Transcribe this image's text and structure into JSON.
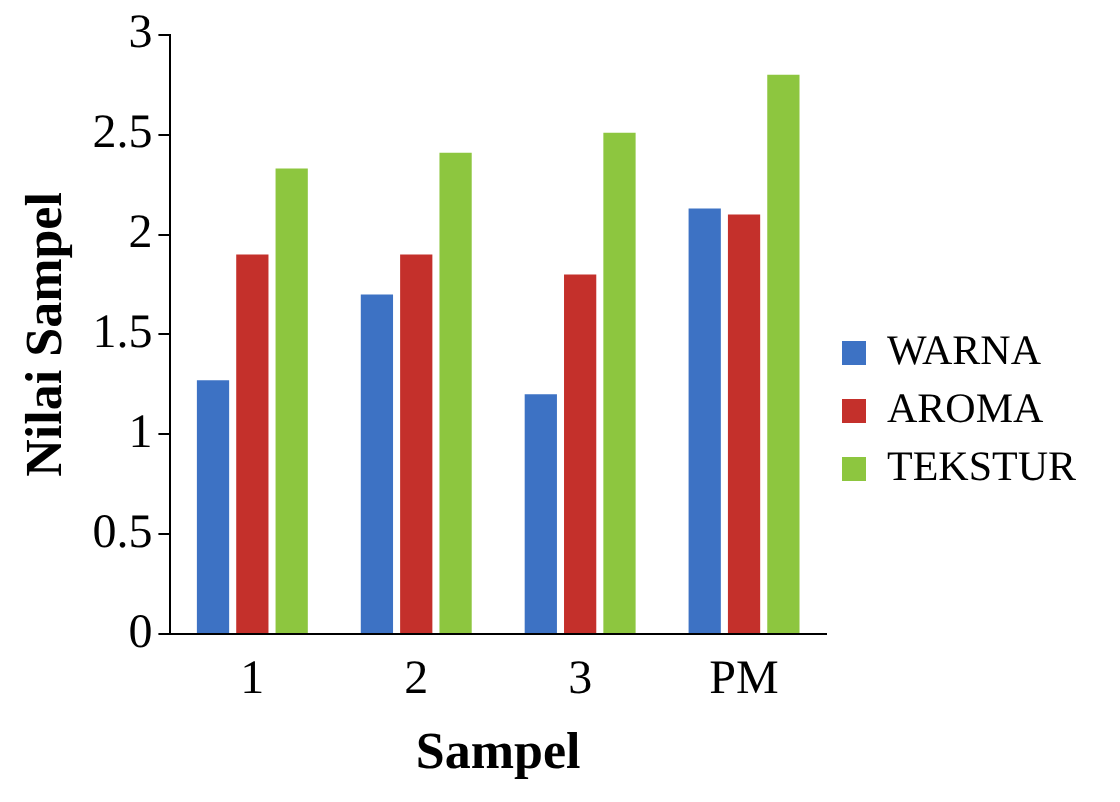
{
  "chart_data": {
    "type": "bar",
    "xlabel": "Sampel",
    "ylabel": "Nilai Sampel",
    "categories": [
      "1",
      "2",
      "3",
      "PM"
    ],
    "series": [
      {
        "name": "WARNA",
        "color": "#3d72c4",
        "values": [
          1.27,
          1.7,
          1.2,
          2.13
        ]
      },
      {
        "name": "AROMA",
        "color": "#c4302b",
        "values": [
          1.9,
          1.9,
          1.8,
          2.1
        ]
      },
      {
        "name": "TEKSTUR",
        "color": "#8dc63f",
        "values": [
          2.33,
          2.41,
          2.51,
          2.8
        ]
      }
    ],
    "ylim": [
      0,
      3
    ],
    "yticks": [
      0,
      0.5,
      1,
      1.5,
      2,
      2.5,
      3
    ],
    "grid": false,
    "legend": "right"
  }
}
